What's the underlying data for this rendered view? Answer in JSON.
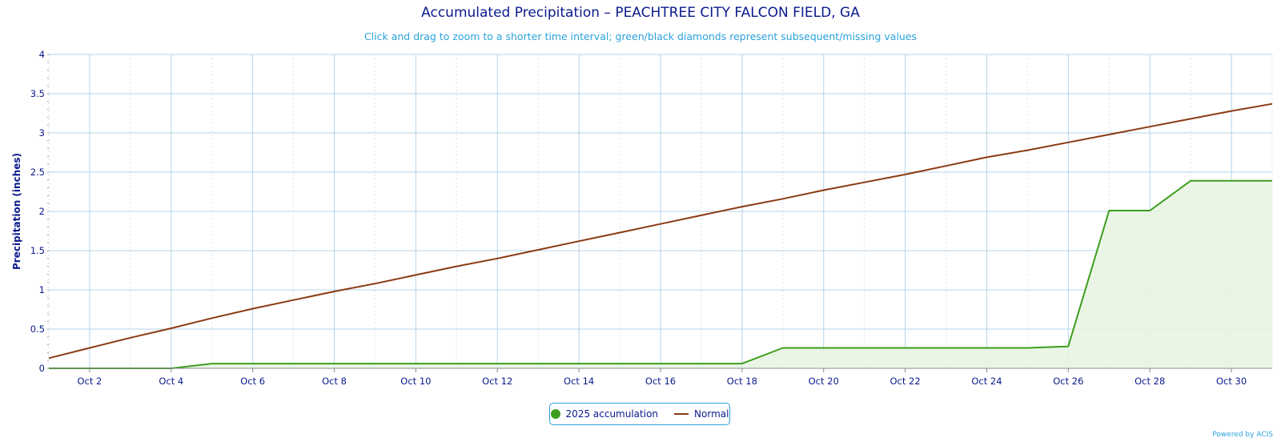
{
  "chart_data": {
    "type": "area",
    "title": "Accumulated Precipitation – PEACHTREE CITY FALCON FIELD, GA",
    "subtitle": "Click and drag to zoom to a shorter time interval; green/black diamonds represent subsequent/missing values",
    "ylabel": "Precipitation (inches)",
    "ylim": [
      0,
      4
    ],
    "yticks": [
      "0",
      "0.5",
      "1",
      "1.5",
      "2",
      "2.5",
      "3",
      "3.5",
      "4"
    ],
    "xlim": [
      1,
      31
    ],
    "xticks": [
      {
        "day": 2,
        "label": "Oct 2"
      },
      {
        "day": 4,
        "label": "Oct 4"
      },
      {
        "day": 6,
        "label": "Oct 6"
      },
      {
        "day": 8,
        "label": "Oct 8"
      },
      {
        "day": 10,
        "label": "Oct 10"
      },
      {
        "day": 12,
        "label": "Oct 12"
      },
      {
        "day": 14,
        "label": "Oct 14"
      },
      {
        "day": 16,
        "label": "Oct 16"
      },
      {
        "day": 18,
        "label": "Oct 18"
      },
      {
        "day": 20,
        "label": "Oct 20"
      },
      {
        "day": 22,
        "label": "Oct 22"
      },
      {
        "day": 24,
        "label": "Oct 24"
      },
      {
        "day": 26,
        "label": "Oct 26"
      },
      {
        "day": 28,
        "label": "Oct 28"
      },
      {
        "day": 30,
        "label": "Oct 30"
      }
    ],
    "grid": true,
    "legend_position": "bottom-center",
    "series": [
      {
        "name": "2025 accumulation",
        "color": "#3c9e1e",
        "fill": "#e8f4e2",
        "x": [
          1,
          2,
          3,
          4,
          5,
          6,
          7,
          8,
          9,
          10,
          11,
          12,
          13,
          14,
          15,
          16,
          17,
          18,
          19,
          20,
          21,
          22,
          23,
          24,
          25,
          26,
          27,
          28,
          29,
          30,
          31
        ],
        "values": [
          0,
          0,
          0,
          0,
          0.06,
          0.06,
          0.06,
          0.06,
          0.06,
          0.06,
          0.06,
          0.06,
          0.06,
          0.06,
          0.06,
          0.06,
          0.06,
          0.06,
          0.26,
          0.26,
          0.26,
          0.26,
          0.26,
          0.26,
          0.26,
          0.28,
          2.01,
          2.01,
          2.39,
          2.39,
          2.39
        ]
      },
      {
        "name": "Normal",
        "color": "#8b3a12",
        "x": [
          1,
          2,
          3,
          4,
          5,
          6,
          7,
          8,
          9,
          10,
          11,
          12,
          13,
          14,
          15,
          16,
          17,
          18,
          19,
          20,
          21,
          22,
          23,
          24,
          25,
          26,
          27,
          28,
          29,
          30,
          31
        ],
        "values": [
          0.13,
          0.26,
          0.39,
          0.51,
          0.64,
          0.76,
          0.87,
          0.98,
          1.08,
          1.19,
          1.3,
          1.4,
          1.51,
          1.62,
          1.73,
          1.84,
          1.95,
          2.06,
          2.16,
          2.27,
          2.37,
          2.47,
          2.58,
          2.69,
          2.78,
          2.88,
          2.98,
          3.08,
          3.18,
          3.28,
          3.37
        ]
      }
    ]
  },
  "legend": {
    "items": [
      {
        "label": "2025 accumulation",
        "color": "#3c9e1e"
      },
      {
        "label": "Normal",
        "color": "#8b3a12"
      }
    ]
  },
  "credits": "Powered by ACIS"
}
